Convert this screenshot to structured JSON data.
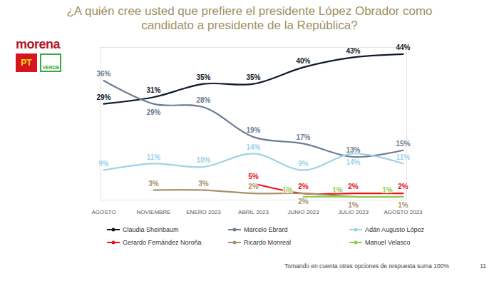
{
  "chart_data": {
    "type": "line",
    "title": "¿A quién cree usted que prefiere el presidente López Obrador como candidato a presidente de la República?",
    "categories": [
      "AGOSTO",
      "NOVIEMBRE",
      "ENERO 2023",
      "ABRIL 2023",
      "JUNIO 2023",
      "JULIO 2023",
      "AGOSTO 2023"
    ],
    "series": [
      {
        "name": "Claudia Sheinbaum",
        "color": "#0f1b2d",
        "values": [
          29,
          31,
          35,
          35,
          40,
          43,
          44
        ],
        "value_labels": [
          "29%",
          "31%",
          "35%",
          "35%",
          "40%",
          "43%",
          "44%"
        ]
      },
      {
        "name": "Marcelo Ebrard",
        "color": "#6c7d95",
        "values": [
          36,
          29,
          28,
          19,
          17,
          13,
          15
        ],
        "value_labels": [
          "36%",
          "29%",
          "28%",
          "19%",
          "17%",
          "13%",
          "15%"
        ]
      },
      {
        "name": "Adán Augusto López",
        "color": "#9ed3e6",
        "values": [
          9,
          11,
          10,
          14,
          9,
          14,
          11
        ],
        "value_labels": [
          "9%",
          "11%",
          "10%",
          "14%",
          "9%",
          "14%",
          "11%"
        ]
      },
      {
        "name": "Gerardo Fernández Noroña",
        "color": "#e8131d",
        "values": [
          null,
          null,
          null,
          5,
          2,
          2,
          2
        ],
        "value_labels": [
          null,
          null,
          null,
          "5%",
          "2%",
          "2%",
          "2%"
        ]
      },
      {
        "name": "Ricardo Monreal",
        "color": "#a8936a",
        "values": [
          null,
          3,
          3,
          2,
          2,
          1,
          1
        ],
        "value_labels": [
          null,
          "3%",
          "3%",
          "2%",
          "2%",
          "1%",
          "1%"
        ]
      },
      {
        "name": "Manuel Velasco",
        "color": "#8fce4f",
        "values": [
          null,
          null,
          null,
          null,
          1,
          1,
          1
        ],
        "value_labels": [
          null,
          null,
          null,
          null,
          "1%",
          "1%",
          "1%"
        ]
      }
    ],
    "ylim": [
      0,
      46
    ],
    "data_labels": true,
    "tick_labels": "x",
    "annotations": [
      "morena",
      "PT",
      "VERDE",
      "Tomando en cuenta otras opciones de respuesta suma 100%",
      "11"
    ]
  }
}
